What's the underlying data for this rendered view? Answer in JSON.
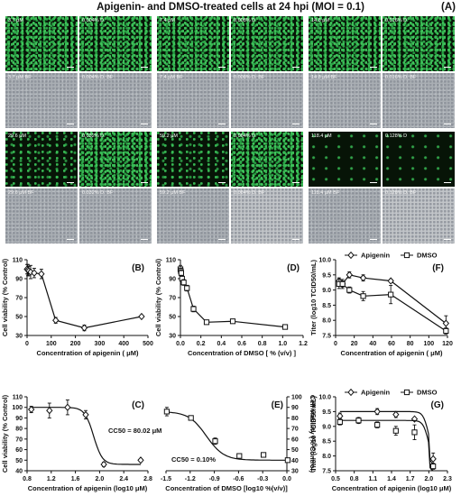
{
  "figure": {
    "title": "Apigenin- and DMSO-treated cells at 24 hpi (MOI = 0.1)",
    "panel_a_label": "(A)"
  },
  "micrographs": [
    {
      "fluor": "3.7 μM",
      "fluor_dmso": "0.004% D",
      "bf": "3.7 μM BF",
      "bf_dmso": "0.004% D. BF"
    },
    {
      "fluor": "7.4 μM",
      "fluor_dmso": "0.008% D",
      "bf": "7.4 μM BF",
      "bf_dmso": "0.008% D. BF"
    },
    {
      "fluor": "14.8 μM",
      "fluor_dmso": "0.016% D",
      "bf": "14.8 μM BF",
      "bf_dmso": "0.016% D. BF"
    },
    {
      "fluor": "29.6 μM",
      "fluor_dmso": "0.032% D",
      "bf": "29.6 μM BF",
      "bf_dmso": "0.032% D. BF"
    },
    {
      "fluor": "59.2 μM",
      "fluor_dmso": "0.064% D",
      "bf": "59.2 μM BF",
      "bf_dmso": "0.064% D. BF"
    },
    {
      "fluor": "118.4 μM",
      "fluor_dmso": "0.128% D",
      "bf": "118.4 μM BF",
      "bf_dmso": "0.128% D. BF"
    }
  ],
  "chart_data": [
    {
      "id": "B",
      "panel_label": "(B)",
      "type": "line",
      "xlabel": "Concentration of apigenin ( μM)",
      "ylabel": "Cell viability (% Control)",
      "xlim": [
        0,
        500
      ],
      "ylim": [
        30,
        110
      ],
      "xticks": [
        "0",
        "100",
        "200",
        "300",
        "400",
        "500"
      ],
      "yticks": [
        "30",
        "50",
        "70",
        "90",
        "110"
      ],
      "series": [
        {
          "marker": "diamond",
          "x": [
            0,
            3.7,
            7.4,
            14.8,
            29.6,
            59.2,
            118.4,
            236.8,
            473.6
          ],
          "y": [
            100,
            99,
            98,
            97,
            96,
            95,
            46,
            38,
            50
          ],
          "err": [
            5,
            6,
            5,
            7,
            5,
            5,
            3,
            3,
            1
          ]
        }
      ]
    },
    {
      "id": "D",
      "panel_label": "(D)",
      "type": "line",
      "xlabel": "Concentration of DMSO [ % (v/v) ]",
      "ylabel": "Cell viability (% Control)",
      "xlim": [
        0,
        1.2
      ],
      "ylim": [
        30,
        110
      ],
      "xticks": [
        "0.0",
        "0.2",
        "0.4",
        "0.6",
        "0.8",
        "1.0",
        "1.2"
      ],
      "yticks": [
        "30",
        "50",
        "70",
        "90",
        "110"
      ],
      "series": [
        {
          "marker": "square",
          "x": [
            0,
            0.004,
            0.008,
            0.016,
            0.032,
            0.064,
            0.128,
            0.256,
            0.512,
            1.024
          ],
          "y": [
            100,
            98,
            96,
            90,
            86,
            80,
            58,
            44,
            45,
            39
          ],
          "err": [
            4,
            3,
            3,
            3,
            3,
            3,
            3,
            2,
            2,
            1
          ]
        }
      ]
    },
    {
      "id": "F",
      "panel_label": "(F)",
      "type": "line",
      "xlabel": "Concentration of apigenin ( μM)",
      "ylabel": "Titer (log10 TCID50/mL)",
      "xlim": [
        0,
        120
      ],
      "ylim": [
        7.5,
        10.0
      ],
      "xticks": [
        "0",
        "20",
        "40",
        "60",
        "80",
        "100",
        "120"
      ],
      "yticks": [
        "7.5",
        "8.0",
        "8.5",
        "9.0",
        "9.5",
        "10.0"
      ],
      "legend": "top",
      "series": [
        {
          "name": "Apigenin",
          "marker": "diamond",
          "x": [
            3.7,
            7.4,
            14.8,
            29.6,
            59.2,
            118.4
          ],
          "y": [
            9.3,
            9.2,
            9.5,
            9.4,
            9.3,
            7.9
          ],
          "err": [
            0.1,
            0.1,
            0.1,
            0.1,
            0.05,
            0.25
          ]
        },
        {
          "name": "DMSO",
          "marker": "square",
          "x": [
            3.7,
            7.4,
            14.8,
            29.6,
            59.2,
            118.4
          ],
          "y": [
            9.2,
            9.2,
            9.0,
            8.8,
            8.85,
            7.65
          ],
          "err": [
            0.15,
            0.15,
            0.1,
            0.15,
            0.3,
            0.1
          ]
        }
      ]
    },
    {
      "id": "C",
      "panel_label": "(C)",
      "type": "line",
      "xlabel": "Concentration of apigenin (log10 μM)",
      "ylabel": "Cell viability (% Control)",
      "xlim": [
        0.8,
        2.8
      ],
      "ylim": [
        40,
        110
      ],
      "xticks": [
        "0.8",
        "1.2",
        "1.6",
        "2.0",
        "2.4",
        "2.8"
      ],
      "yticks": [
        "40",
        "50",
        "60",
        "70",
        "80",
        "90",
        "100",
        "110"
      ],
      "annotation": "CC50 = 80.02 μM",
      "series": [
        {
          "marker": "diamond",
          "x": [
            0.87,
            1.17,
            1.47,
            1.77,
            2.07,
            2.68
          ],
          "y": [
            98,
            97,
            100,
            93,
            46,
            50
          ],
          "err": [
            3,
            7,
            7,
            4,
            2,
            0.5
          ]
        }
      ]
    },
    {
      "id": "E",
      "panel_label": "(E)",
      "type": "line",
      "xlabel": "Concentration of DMSO [log10 %(v/v)]",
      "ylabel": "Cell viability (% Control)",
      "xlim": [
        -1.5,
        0.0
      ],
      "ylim": [
        30,
        100
      ],
      "yaxis_side": "right",
      "xticks": [
        "-1.5",
        "-1.2",
        "-0.9",
        "-0.6",
        "-0.3",
        "0.0"
      ],
      "yticks": [
        "30",
        "40",
        "50",
        "60",
        "70",
        "80",
        "90",
        "100"
      ],
      "annotation": "CC50 = 0.10%",
      "series": [
        {
          "marker": "square",
          "x": [
            -1.49,
            -1.19,
            -0.89,
            -0.59,
            -0.29,
            0.01
          ],
          "y": [
            86,
            80,
            58,
            44,
            45,
            40
          ],
          "err": [
            4,
            2,
            3,
            1,
            1,
            1
          ]
        }
      ]
    },
    {
      "id": "G",
      "panel_label": "(G)",
      "type": "line",
      "xlabel": "Concentration of apigenin (log10 μM)",
      "ylabel": "Titer (log10 TCID50/mL)",
      "xlim": [
        0.5,
        2.3
      ],
      "ylim": [
        7.5,
        10.0
      ],
      "xticks": [
        "0.5",
        "0.8",
        "1.1",
        "1.4",
        "1.7",
        "2.0",
        "2.3"
      ],
      "yticks": [
        "7.5",
        "8.0",
        "8.5",
        "9.0",
        "9.5",
        "10.0"
      ],
      "legend": "top",
      "series": [
        {
          "name": "Apigenin",
          "marker": "diamond",
          "x": [
            0.57,
            0.87,
            1.17,
            1.47,
            1.77,
            2.07
          ],
          "y": [
            9.35,
            9.2,
            9.5,
            9.4,
            9.25,
            7.9
          ],
          "err": [
            0.1,
            0.1,
            0.1,
            0.1,
            0.05,
            0.2
          ]
        },
        {
          "name": "DMSO",
          "marker": "square",
          "x": [
            0.57,
            0.87,
            1.17,
            1.47,
            1.77,
            2.07
          ],
          "y": [
            9.15,
            9.2,
            9.05,
            8.85,
            8.8,
            7.65
          ],
          "err": [
            0.1,
            0.1,
            0.1,
            0.15,
            0.25,
            0.1
          ]
        }
      ]
    }
  ]
}
